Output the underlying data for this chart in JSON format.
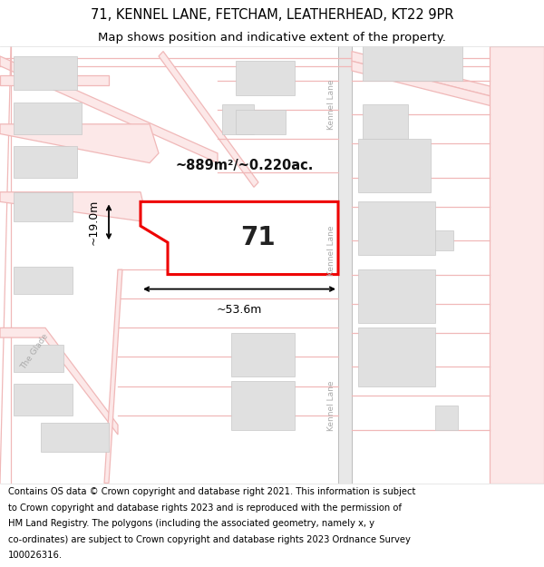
{
  "title_line1": "71, KENNEL LANE, FETCHAM, LEATHERHEAD, KT22 9PR",
  "title_line2": "Map shows position and indicative extent of the property.",
  "footer_text": "Contains OS data © Crown copyright and database right 2021. This information is subject to Crown copyright and database rights 2023 and is reproduced with the permission of HM Land Registry. The polygons (including the associated geometry, namely x, y co-ordinates) are subject to Crown copyright and database rights 2023 Ordnance Survey 100026316.",
  "area_label": "~889m²/~0.220ac.",
  "width_label": "~53.6m",
  "height_label": "~19.0m",
  "plot_number": "71",
  "bg_color": "#ffffff",
  "map_bg": "#ffffff",
  "road_line_color": "#f0b8b8",
  "road_fill_color": "#fce8e8",
  "building_fill": "#e0e0e0",
  "building_edge": "#c8c8c8",
  "plot_fill": "#ffffff",
  "plot_edge": "#ee0000",
  "kennel_lane_color": "#d8d8d8",
  "kennel_lane_edge": "#bbbbbb",
  "title_fontsize": 10.5,
  "subtitle_fontsize": 9.5,
  "footer_fontsize": 7.2,
  "label_fontsize": 10.5,
  "dim_fontsize": 9.0,
  "number_fontsize": 20,
  "road_text_color": "#aaaaaa",
  "road_text_fontsize": 6.5
}
